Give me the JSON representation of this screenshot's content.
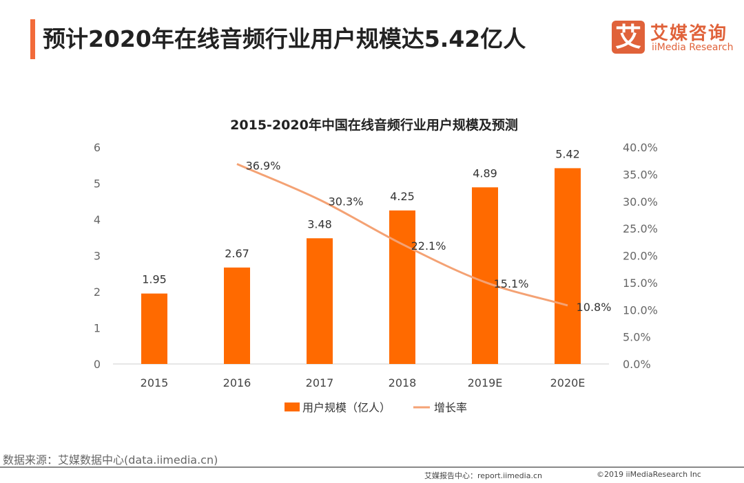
{
  "header": {
    "title": "预计2020年在线音频行业用户规模达5.42亿人",
    "logo_cn": "艾媒咨询",
    "logo_en": "iiMedia Research",
    "logo_mark": "艾"
  },
  "footer": {
    "source": "数据来源：艾媒数据中心(data.iimedia.cn)",
    "report": "艾媒报告中心：report.iimedia.cn",
    "copyright": "©2019  iiMediaResearch  Inc"
  },
  "chart_data": {
    "type": "bar+line",
    "title": "2015-2020年中国在线音频行业用户规模及预测",
    "categories": [
      "2015",
      "2016",
      "2017",
      "2018",
      "2019E",
      "2020E"
    ],
    "series": [
      {
        "name": "用户规模（亿人）",
        "type": "bar",
        "axis": "left",
        "values": [
          1.95,
          2.67,
          3.48,
          4.25,
          4.89,
          5.42
        ],
        "labels": [
          "1.95",
          "2.67",
          "3.48",
          "4.25",
          "4.89",
          "5.42"
        ],
        "color": "#ff6a00"
      },
      {
        "name": "增长率",
        "type": "line",
        "axis": "right",
        "values": [
          null,
          36.9,
          30.3,
          22.1,
          15.1,
          10.8
        ],
        "labels": [
          "",
          "36.9%",
          "30.3%",
          "22.1%",
          "15.1%",
          "10.8%"
        ],
        "color": "#f4a274"
      }
    ],
    "left_axis": {
      "ylim": [
        0,
        6
      ],
      "ticks": [
        "0",
        "1",
        "2",
        "3",
        "4",
        "5",
        "6"
      ]
    },
    "right_axis": {
      "ylim": [
        0,
        40
      ],
      "ticks": [
        "0.0%",
        "5.0%",
        "10.0%",
        "15.0%",
        "20.0%",
        "25.0%",
        "30.0%",
        "35.0%",
        "40.0%"
      ]
    },
    "grid": false,
    "legend": "bottom"
  }
}
